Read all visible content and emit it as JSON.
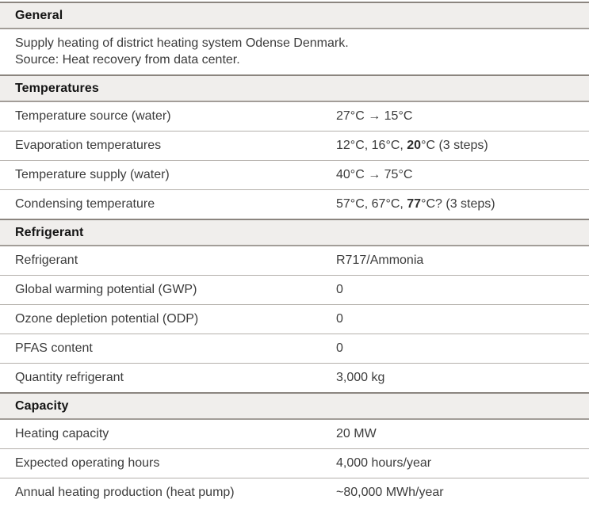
{
  "table": {
    "colors": {
      "header_band_bg": "#f0eeec",
      "band_border_top": "#8b857f",
      "band_border_bottom": "#a29d98",
      "row_separator": "#b4b0ab",
      "header_text": "#141414",
      "body_text": "#3c3c3c"
    },
    "sections": [
      {
        "title": "General",
        "description_lines": [
          "Supply heating of district heating system Odense Denmark.",
          "Source: Heat recovery from data center."
        ]
      },
      {
        "title": "Temperatures",
        "rows": [
          {
            "label": "Temperature source (water)",
            "value": {
              "pre": "27°C → 15°C"
            }
          },
          {
            "label": "Evaporation temperatures",
            "value": {
              "pre": "12°C, 16°C, ",
              "bold": "20",
              "post": "°C (3 steps)"
            }
          },
          {
            "label": "Temperature supply (water)",
            "value": {
              "pre": "40°C → 75°C"
            }
          },
          {
            "label": "Condensing temperature",
            "value": {
              "pre": "57°C, 67°C, ",
              "bold": "77",
              "post": "°C? (3 steps)"
            }
          }
        ]
      },
      {
        "title": "Refrigerant",
        "rows": [
          {
            "label": "Refrigerant",
            "value": {
              "pre": "R717/Ammonia"
            }
          },
          {
            "label": "Global warming potential (GWP)",
            "value": {
              "pre": "0"
            }
          },
          {
            "label": "Ozone depletion potential (ODP)",
            "value": {
              "pre": "0"
            }
          },
          {
            "label": "PFAS content",
            "value": {
              "pre": "0"
            }
          },
          {
            "label": "Quantity refrigerant",
            "value": {
              "pre": "3,000 kg"
            }
          }
        ]
      },
      {
        "title": "Capacity",
        "rows": [
          {
            "label": "Heating capacity",
            "value": {
              "pre": "20 MW"
            }
          },
          {
            "label": "Expected operating hours",
            "value": {
              "pre": "4,000 hours/year"
            }
          },
          {
            "label": "Annual heating production (heat pump)",
            "value": {
              "pre": "~80,000 MWh/year"
            }
          }
        ]
      }
    ]
  }
}
